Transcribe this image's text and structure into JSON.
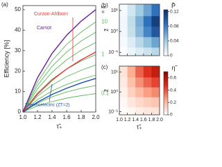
{
  "chart_data": [
    {
      "type": "line",
      "panel_label": "(a)",
      "ylabel": "Efficiency [%]",
      "xlabel": "τ̃₊",
      "z_label": "z̃ =",
      "x": [
        1.0,
        1.2,
        1.4,
        1.6,
        1.8,
        2.0
      ],
      "xlim": [
        1.0,
        2.0
      ],
      "xticks": [
        {
          "value": 1.0,
          "label": "1.0"
        },
        1.2,
        1.4,
        1.6,
        1.8,
        {
          "value": 2.0,
          "label": "2.0"
        }
      ],
      "ylim": [
        0,
        52
      ],
      "yticks": [
        0,
        10,
        20,
        30,
        40,
        50
      ],
      "series": [
        {
          "name": "10",
          "color": "#5cb85c",
          "values": [
            0,
            14.7,
            25.1,
            33,
            39.1,
            44
          ]
        },
        {
          "color": "#5cb85c",
          "values": [
            0,
            13,
            22.3,
            29.3,
            34.7,
            39
          ]
        },
        {
          "color": "#5cb85c",
          "values": [
            0,
            11.3,
            19.4,
            25.5,
            30.2,
            34
          ]
        },
        {
          "name": "1",
          "color": "#5cb85c",
          "values": [
            0,
            9.3,
            16,
            21,
            24.9,
            28
          ]
        },
        {
          "color": "#5cb85c",
          "values": [
            0,
            7.7,
            13.1,
            17.3,
            20.4,
            23
          ]
        },
        {
          "color": "#5cb85c",
          "values": [
            0,
            6,
            10.3,
            13.5,
            16,
            18
          ]
        },
        {
          "color": "#5cb85c",
          "values": [
            0,
            4.3,
            7.4,
            9.8,
            11.6,
            13
          ]
        },
        {
          "name": "0.1",
          "color": "#5cb85c",
          "values": [
            0,
            3,
            5.1,
            6.8,
            8,
            9
          ]
        },
        {
          "name": "Carnot",
          "color": "#6a1b9a",
          "values": [
            0,
            16.7,
            28.6,
            37.5,
            44.4,
            50
          ]
        },
        {
          "name": "Curzon-Ahlborn",
          "color": "#e53935",
          "values": [
            0,
            8.7,
            15.5,
            21,
            25.5,
            29.3
          ]
        },
        {
          "name": "Thermoelectric (ZT=2)",
          "color": "#1e4fa8",
          "values": [
            0,
            4.8,
            8.6,
            11.6,
            14.2,
            16.4
          ]
        }
      ]
    },
    {
      "type": "heatmap",
      "panel_label": "(b)",
      "ylabel": "z̃",
      "colorbar_label": "P̃",
      "x": [
        1.1,
        1.3,
        1.5,
        1.7,
        1.9
      ],
      "y": [
        0.1,
        0.3,
        1,
        3,
        10
      ],
      "values": [
        [
          0.002,
          0.008,
          0.015,
          0.022,
          0.03
        ],
        [
          0.004,
          0.015,
          0.03,
          0.045,
          0.06
        ],
        [
          0.006,
          0.025,
          0.05,
          0.075,
          0.1
        ],
        [
          0.006,
          0.027,
          0.055,
          0.085,
          0.115
        ],
        [
          0.004,
          0.02,
          0.04,
          0.06,
          0.085
        ]
      ],
      "xlim": [
        1.0,
        2.0
      ],
      "xticks": [
        1.2,
        1.4,
        1.6,
        1.8
      ],
      "ylim": [
        0.07,
        20
      ],
      "yticks": [
        {
          "value": 0.1,
          "label": "10⁻¹"
        },
        {
          "value": 1,
          "label": "10⁰"
        },
        {
          "value": 10,
          "label": "10¹"
        }
      ],
      "log_y": true,
      "clim": [
        0,
        0.125
      ],
      "cticks": [
        0,
        0.04,
        0.08,
        0.12
      ],
      "colors": [
        "#ffffff",
        "#9ecae1",
        "#2f74c0",
        "#0b2f6b"
      ]
    },
    {
      "type": "heatmap",
      "panel_label": "(c)",
      "ylabel": "z̃",
      "xlabel": "τ̃₊",
      "colorbar_label": "η̃",
      "x": [
        1.1,
        1.3,
        1.5,
        1.7,
        1.9
      ],
      "y": [
        0.1,
        0.3,
        1,
        3,
        10
      ],
      "values": [
        [
          0.01,
          0.03,
          0.05,
          0.07,
          0.08
        ],
        [
          0.02,
          0.07,
          0.11,
          0.14,
          0.17
        ],
        [
          0.04,
          0.13,
          0.2,
          0.26,
          0.3
        ],
        [
          0.06,
          0.18,
          0.29,
          0.37,
          0.43
        ],
        [
          0.08,
          0.23,
          0.37,
          0.47,
          0.55
        ]
      ],
      "xlim": [
        1.0,
        2.0
      ],
      "xticks": [
        {
          "value": 1.0,
          "label": "1.0"
        },
        1.2,
        1.4,
        1.6,
        1.8,
        {
          "value": 2.0,
          "label": "2.0"
        }
      ],
      "ylim": [
        0.07,
        20
      ],
      "yticks": [
        {
          "value": 0.1,
          "label": "10⁻¹"
        },
        {
          "value": 1,
          "label": "10⁰"
        },
        {
          "value": 10,
          "label": "10¹"
        }
      ],
      "log_y": true,
      "clim": [
        0,
        0.7
      ],
      "cticks": [
        0,
        0.2,
        0.4,
        0.6
      ],
      "colors": [
        "#ffffff",
        "#fcae91",
        "#e0301e",
        "#8b0000"
      ]
    }
  ]
}
